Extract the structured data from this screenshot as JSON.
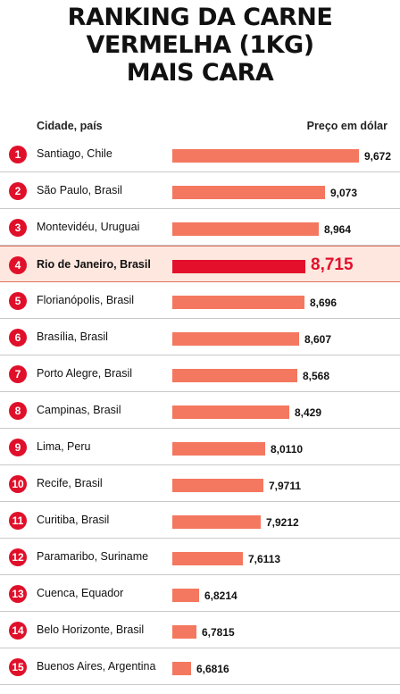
{
  "title_lines": [
    "RANKING DA CARNE",
    "VERMELHA (1KG)",
    "MAIS CARA"
  ],
  "header": {
    "city": "Cidade, país",
    "price": "Preço em dólar"
  },
  "highlight_color": "#e30f2b",
  "bar_color": "#f4785f",
  "chart_data": {
    "type": "bar",
    "orientation": "horizontal",
    "title": "RANKING DA CARNE VERMELHA (1KG) MAIS CARA",
    "xlabel": "Preço em dólar",
    "ylabel": "Cidade, país",
    "categories": [
      "Santiago, Chile",
      "São Paulo, Brasil",
      "Montevidéu, Uruguai",
      "Rio de Janeiro, Brasil",
      "Florianópolis, Brasil",
      "Brasília, Brasil",
      "Porto Alegre, Brasil",
      "Campinas, Brasil",
      "Lima, Peru",
      "Recife, Brasil",
      "Curitiba, Brasil",
      "Paramaribo, Suriname",
      "Cuenca, Equador",
      "Belo Horizonte, Brasil",
      "Buenos Aires, Argentina"
    ],
    "ranks": [
      "1",
      "2",
      "3",
      "4",
      "5",
      "6",
      "7",
      "8",
      "9",
      "10",
      "11",
      "12",
      "13",
      "14",
      "15"
    ],
    "values": [
      9.672,
      9.073,
      8.964,
      8.715,
      8.696,
      8.607,
      8.568,
      8.429,
      8.011,
      7.9711,
      7.9212,
      7.6113,
      6.8214,
      6.7815,
      6.6816
    ],
    "value_labels": [
      "9,672",
      "9,073",
      "8,964",
      "8,715",
      "8,696",
      "8,607",
      "8,568",
      "8,429",
      "8,0110",
      "7,9711",
      "7,9212",
      "7,6113",
      "6,8214",
      "6,7815",
      "6,6816"
    ],
    "highlight_index": 3,
    "grid": false
  }
}
